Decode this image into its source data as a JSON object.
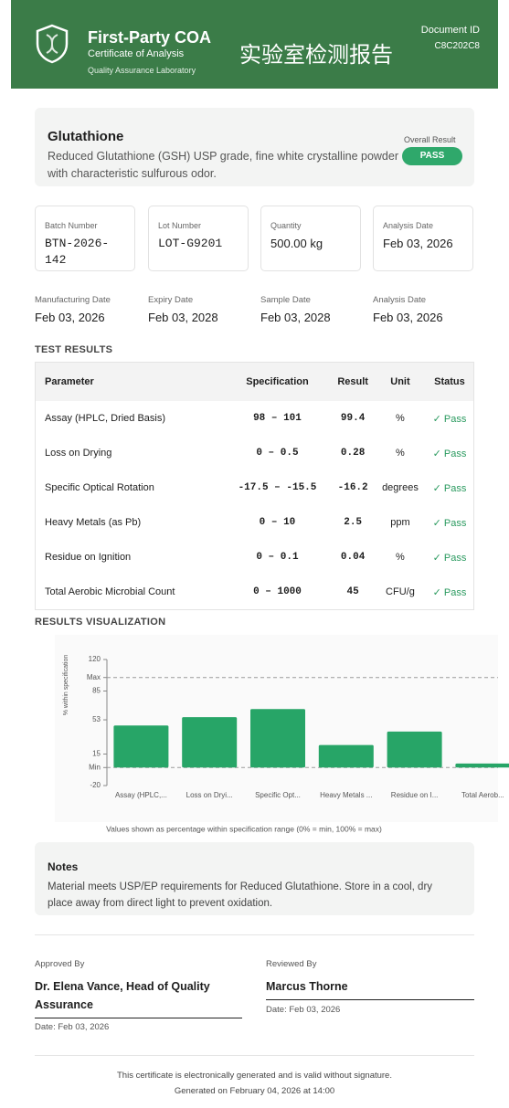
{
  "header": {
    "title": "First-Party COA",
    "subtitle": "Certificate of Analysis",
    "organization": "Quality Assurance Laboratory",
    "title_cn": "实验室检测报告",
    "document_id_label": "Document ID",
    "document_id": "C8C202C8"
  },
  "product": {
    "name": "Glutathione",
    "description": "Reduced Glutathione (GSH) USP grade, fine white crystalline powder with characteristic sulfurous odor.",
    "result_label": "Overall Result",
    "result": "PASS"
  },
  "info_cards": [
    {
      "label": "Batch Number",
      "value": "BTN-2026-142"
    },
    {
      "label": "Lot Number",
      "value": "LOT-G9201"
    },
    {
      "label": "Quantity",
      "value": "500.00 kg"
    },
    {
      "label": "Analysis Date",
      "value": "Feb 03, 2026"
    }
  ],
  "dates": [
    {
      "label": "Manufacturing Date",
      "value": "Feb 03, 2026"
    },
    {
      "label": "Expiry Date",
      "value": "Feb 03, 2028"
    },
    {
      "label": "Sample Date",
      "value": "Feb 03, 2028"
    },
    {
      "label": "Analysis Date",
      "value": "Feb 03, 2026"
    }
  ],
  "test_results": {
    "heading": "TEST RESULTS",
    "columns": [
      "Parameter",
      "Specification",
      "Result",
      "Unit",
      "Status"
    ],
    "rows": [
      [
        "Assay (HPLC, Dried Basis)",
        "98 – 101",
        "99.4",
        "%",
        "Pass"
      ],
      [
        "Loss on Drying",
        "0 – 0.5",
        "0.28",
        "%",
        "Pass"
      ],
      [
        "Specific Optical Rotation",
        "-17.5 – -15.5",
        "-16.2",
        "degrees",
        "Pass"
      ],
      [
        "Heavy Metals (as Pb)",
        "0 – 10",
        "2.5",
        "ppm",
        "Pass"
      ],
      [
        "Residue on Ignition",
        "0 – 0.1",
        "0.04",
        "%",
        "Pass"
      ],
      [
        "Total Aerobic Microbial Count",
        "0 – 1000",
        "45",
        "CFU/g",
        "Pass"
      ]
    ]
  },
  "chart_data": {
    "type": "bar",
    "title": "RESULTS VISUALIZATION",
    "y_label": "% within specification",
    "note": "Values shown as percentage within specification range (0% = min, 100% = max)",
    "categories": [
      "Assay (HPLC,...",
      "Loss on Dryi...",
      "Specific Opt...",
      "Heavy Metals ...",
      "Residue on I...",
      "Total Aerob..."
    ],
    "values": [
      46.7,
      56,
      65,
      25,
      40,
      4.5
    ],
    "color": "#27a567",
    "ylim": [
      -20,
      120
    ],
    "yticks": [
      -20,
      {
        "value": 0,
        "label": "Min"
      },
      15,
      53,
      85,
      {
        "value": 100,
        "label": "Max"
      },
      120
    ],
    "grid": false
  },
  "notes": {
    "title": "Notes",
    "text": "Material meets USP/EP requirements for Reduced Glutathione. Store in a cool, dry place away from direct light to prevent oxidation."
  },
  "signatures": [
    {
      "role": "Approved By",
      "name": "Dr. Elena Vance, Head of Quality Assurance",
      "date": "Date: Feb 03, 2026"
    },
    {
      "role": "Reviewed By",
      "name": "Marcus Thorne",
      "date": "Date: Feb 03, 2026"
    }
  ],
  "footer": {
    "disclaimer": "This certificate is electronically generated and is valid without signature.",
    "generated": "Generated on February 04, 2026 at 14:00"
  }
}
